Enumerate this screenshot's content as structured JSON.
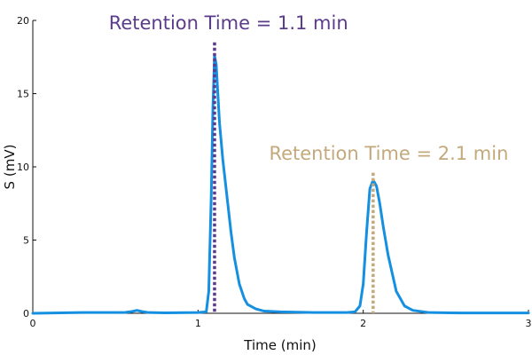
{
  "chart_data": {
    "type": "line",
    "xlabel": "Time (min)",
    "ylabel": "S (mV)",
    "xlim": [
      0,
      3
    ],
    "ylim": [
      0,
      20
    ],
    "x_ticks": [
      0,
      1,
      2,
      3
    ],
    "y_ticks": [
      0,
      5,
      10,
      15,
      20
    ],
    "grid": false,
    "series": [
      {
        "color": "#1590e0",
        "x": [
          0,
          0.3,
          0.55,
          0.6,
          0.63,
          0.66,
          0.7,
          0.8,
          1.0,
          1.05,
          1.065,
          1.08,
          1.09,
          1.1,
          1.11,
          1.12,
          1.13,
          1.15,
          1.18,
          1.2,
          1.22,
          1.25,
          1.28,
          1.3,
          1.35,
          1.4,
          1.5,
          1.7,
          1.9,
          1.95,
          1.98,
          2.0,
          2.02,
          2.04,
          2.06,
          2.08,
          2.1,
          2.12,
          2.15,
          2.18,
          2.2,
          2.25,
          2.3,
          2.4,
          2.6,
          3.0
        ],
        "y": [
          0.0,
          0.05,
          0.05,
          0.12,
          0.2,
          0.12,
          0.05,
          0.03,
          0.05,
          0.1,
          1.5,
          8.0,
          14.0,
          17.6,
          17.0,
          15.0,
          13.0,
          10.5,
          7.5,
          5.5,
          3.8,
          2.0,
          1.0,
          0.6,
          0.3,
          0.15,
          0.1,
          0.05,
          0.05,
          0.1,
          0.5,
          2.0,
          5.5,
          8.5,
          9.1,
          8.7,
          7.5,
          6.0,
          4.0,
          2.5,
          1.5,
          0.5,
          0.2,
          0.05,
          0.02,
          0.02
        ]
      }
    ],
    "annotations": [
      {
        "text": "Retention Time = 1.1 min",
        "x": 1.1,
        "y_top": 18.5,
        "color": "#5a3b8c",
        "label_x": 0.46,
        "label_y": 19.4,
        "anchor": "start"
      },
      {
        "text": "Retention Time = 2.1 min",
        "x": 2.06,
        "y_top": 9.6,
        "color": "#c3a97c",
        "label_x": 1.43,
        "label_y": 10.5,
        "anchor": "start"
      }
    ]
  }
}
